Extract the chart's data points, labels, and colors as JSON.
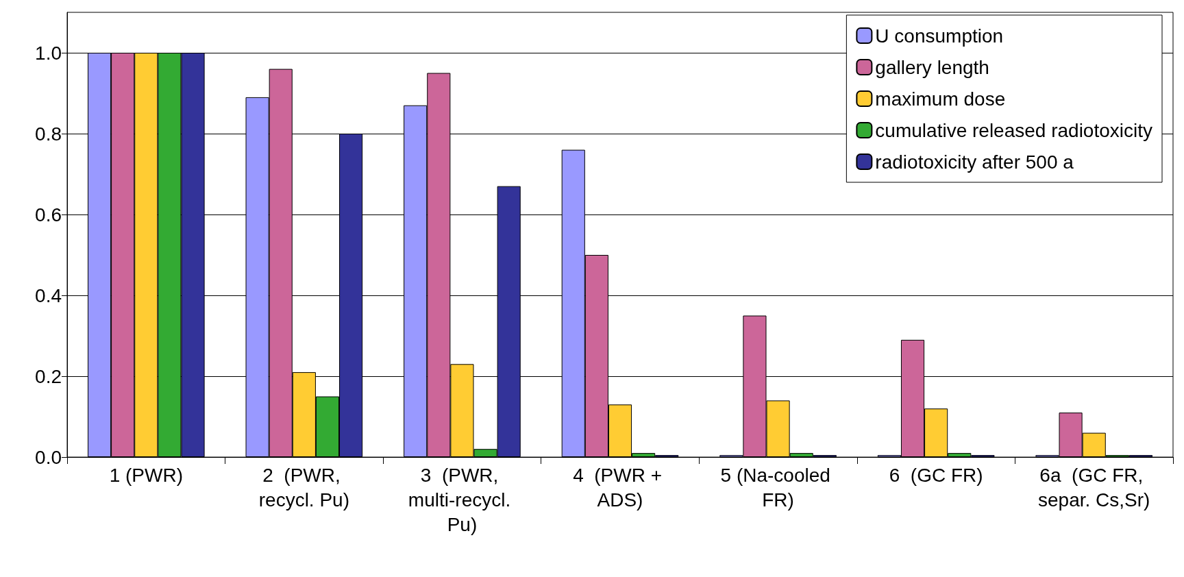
{
  "chart_data": {
    "type": "bar",
    "categories": [
      "1 (PWR)",
      "2  (PWR, recycl. Pu)",
      "3  (PWR, multi-recycl. Pu)",
      "4  (PWR + ADS)",
      "5 (Na-cooled FR)",
      "6  (GC FR)",
      "6a  (GC FR, separ. Cs,Sr)"
    ],
    "series": [
      {
        "name": "U consumption",
        "color": "#9999ff",
        "values": [
          1.0,
          0.89,
          0.87,
          0.76,
          0.005,
          0.005,
          0.005
        ]
      },
      {
        "name": "gallery length",
        "color": "#cc6699",
        "values": [
          1.0,
          0.96,
          0.95,
          0.5,
          0.35,
          0.29,
          0.11
        ]
      },
      {
        "name": "maximum dose",
        "color": "#ffcc33",
        "values": [
          1.0,
          0.21,
          0.23,
          0.13,
          0.14,
          0.12,
          0.06
        ]
      },
      {
        "name": "cumulative released radiotoxicity",
        "color": "#33aa33",
        "values": [
          1.0,
          0.15,
          0.02,
          0.01,
          0.01,
          0.01,
          0.005
        ]
      },
      {
        "name": "radiotoxicity after 500 a",
        "color": "#333399",
        "values": [
          1.0,
          0.8,
          0.67,
          0.005,
          0.005,
          0.005,
          0.005
        ]
      }
    ],
    "ylim": [
      0,
      1.1
    ],
    "yticks": [
      {
        "value": 0,
        "label": "0.0"
      },
      {
        "value": 0.2,
        "label": "0.2"
      },
      {
        "value": 0.4,
        "label": "0.4"
      },
      {
        "value": 0.6,
        "label": "0.6"
      },
      {
        "value": 0.8,
        "label": "0.8"
      },
      {
        "value": 1,
        "label": "1.0"
      }
    ],
    "grid": "y",
    "legend": "top right"
  }
}
